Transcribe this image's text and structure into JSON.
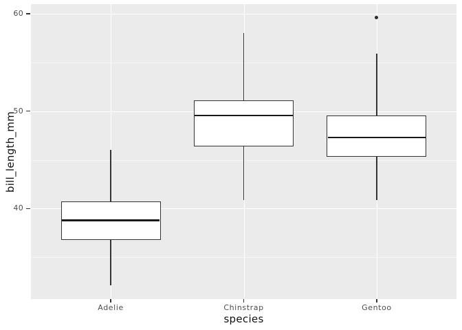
{
  "chart_data": {
    "type": "boxplot",
    "title": "",
    "xlabel": "species",
    "ylabel": "bill_length_mm",
    "categories": [
      "Adelie",
      "Chinstrap",
      "Gentoo"
    ],
    "series": [
      {
        "category": "Adelie",
        "whisker_low": 32.1,
        "q1": 36.75,
        "median": 38.8,
        "q3": 40.75,
        "whisker_high": 46.0,
        "outliers": []
      },
      {
        "category": "Chinstrap",
        "whisker_low": 40.9,
        "q1": 46.35,
        "median": 49.55,
        "q3": 51.08,
        "whisker_high": 58.0,
        "outliers": []
      },
      {
        "category": "Gentoo",
        "whisker_low": 40.9,
        "q1": 45.3,
        "median": 47.3,
        "q3": 49.55,
        "whisker_high": 55.9,
        "outliers": [
          59.6
        ]
      }
    ],
    "y_ticks": [
      40,
      50,
      60
    ],
    "y_minor_ticks": [
      35,
      45,
      55
    ],
    "ylim": [
      30.7,
      61.0
    ],
    "legend": "none",
    "grid": "on",
    "style": {
      "panel_bg": "#EBEBEB",
      "grid_color": "#FFFFFF",
      "box_fill": "#FFFFFF",
      "box_stroke": "#333333",
      "median_color": "#1A1A1A",
      "whisker_color": "#333333",
      "outlier_color": "#2B2B2B",
      "axis_text_color": "#4D4D4D",
      "axis_title_color": "#111111",
      "tick_color": "#333333"
    }
  }
}
